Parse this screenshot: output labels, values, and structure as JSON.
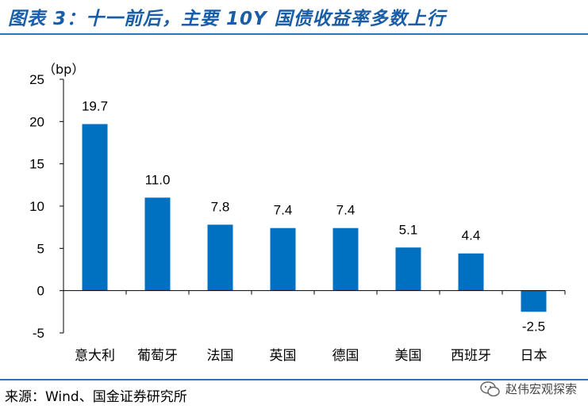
{
  "header": {
    "title": "图表 3：十一前后，主要 10Y 国债收益率多数上行"
  },
  "footer": {
    "source": "来源：Wind、国金证券研究所",
    "watermark": "赵伟宏观探索"
  },
  "colors": {
    "bar": "#0070c0",
    "accent": "#2e75b6"
  },
  "chart_data": {
    "type": "bar",
    "unit_label": "（bp）",
    "categories": [
      "意大利",
      "葡萄牙",
      "法国",
      "英国",
      "德国",
      "美国",
      "西班牙",
      "日本"
    ],
    "values": [
      19.7,
      11.0,
      7.8,
      7.4,
      7.4,
      5.1,
      4.4,
      -2.5
    ],
    "value_labels": [
      "19.7",
      "11.0",
      "7.8",
      "7.4",
      "7.4",
      "5.1",
      "4.4",
      "-2.5"
    ],
    "ylim": [
      -5,
      25
    ],
    "yticks": [
      -5,
      0,
      5,
      10,
      15,
      20,
      25
    ],
    "grid": false,
    "legend": "none"
  }
}
